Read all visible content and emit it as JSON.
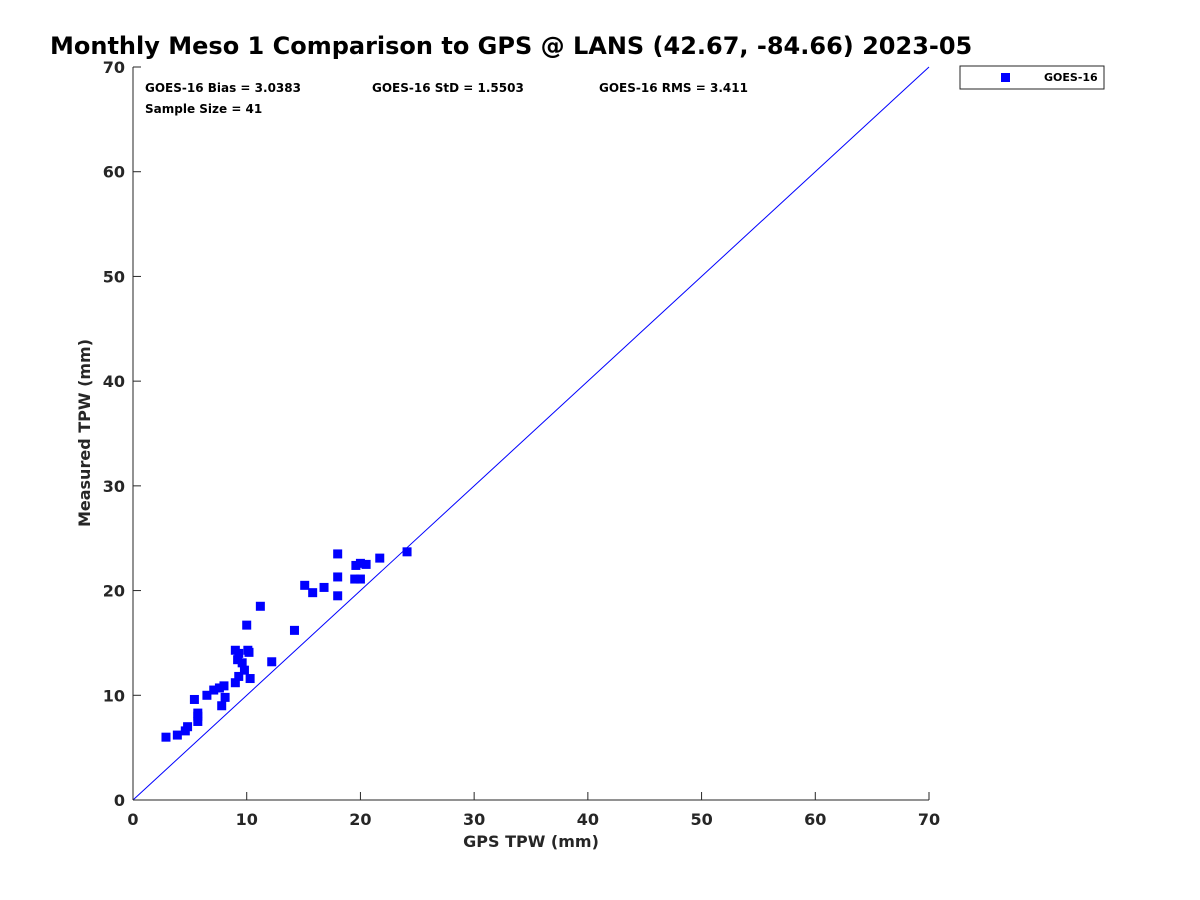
{
  "chart_data": {
    "type": "scatter",
    "title": "Monthly Meso 1 Comparison to GPS @ LANS (42.67, -84.66) 2023-05",
    "xlabel": "GPS TPW (mm)",
    "ylabel": "Measured TPW (mm)",
    "xlim": [
      0,
      70
    ],
    "ylim": [
      0,
      70
    ],
    "xticks": [
      "0",
      "10",
      "20",
      "30",
      "40",
      "50",
      "60",
      "70"
    ],
    "yticks": [
      "0",
      "10",
      "20",
      "30",
      "40",
      "50",
      "60",
      "70"
    ],
    "grid": false,
    "legend_position": "top-right outside",
    "reference_line": {
      "type": "one-to-one",
      "from": [
        0,
        0
      ],
      "to": [
        70,
        70
      ],
      "color": "#0000ff"
    },
    "stats": {
      "bias": "GOES-16 Bias = 3.0383",
      "std": "GOES-16 StD = 1.5503",
      "rms": "GOES-16 RMS = 3.411",
      "sample": "Sample Size = 41"
    },
    "series": [
      {
        "name": "GOES-16",
        "color": "#0000ff",
        "marker": "square",
        "points": [
          [
            2.9,
            6.0
          ],
          [
            3.9,
            6.2
          ],
          [
            4.6,
            6.6
          ],
          [
            4.8,
            7.0
          ],
          [
            5.4,
            9.6
          ],
          [
            5.7,
            7.5
          ],
          [
            5.7,
            8.0
          ],
          [
            5.7,
            8.3
          ],
          [
            6.5,
            10.0
          ],
          [
            7.1,
            10.5
          ],
          [
            7.6,
            10.7
          ],
          [
            7.8,
            9.0
          ],
          [
            8.0,
            10.9
          ],
          [
            8.1,
            9.8
          ],
          [
            9.0,
            11.2
          ],
          [
            9.0,
            14.3
          ],
          [
            9.2,
            13.4
          ],
          [
            9.3,
            11.8
          ],
          [
            9.3,
            14.0
          ],
          [
            9.6,
            13.1
          ],
          [
            9.8,
            12.4
          ],
          [
            10.0,
            16.7
          ],
          [
            10.1,
            14.3
          ],
          [
            10.2,
            14.1
          ],
          [
            10.3,
            11.6
          ],
          [
            11.2,
            18.5
          ],
          [
            12.2,
            13.2
          ],
          [
            14.2,
            16.2
          ],
          [
            15.1,
            20.5
          ],
          [
            15.8,
            19.8
          ],
          [
            16.8,
            20.3
          ],
          [
            18.0,
            19.5
          ],
          [
            18.0,
            21.3
          ],
          [
            18.0,
            23.5
          ],
          [
            19.5,
            21.1
          ],
          [
            19.6,
            22.4
          ],
          [
            20.0,
            21.1
          ],
          [
            20.0,
            22.6
          ],
          [
            20.5,
            22.5
          ],
          [
            21.7,
            23.1
          ],
          [
            24.1,
            23.7
          ]
        ]
      }
    ]
  }
}
